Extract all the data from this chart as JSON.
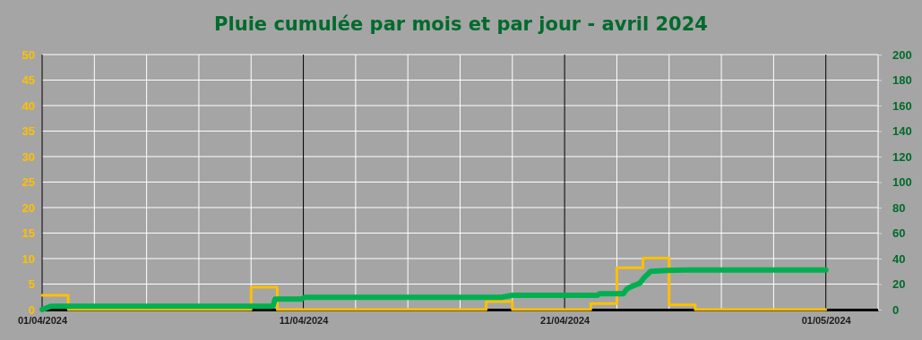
{
  "chart_data": {
    "type": "line",
    "title": "Pluie cumulée par mois et par jour - avril 2024",
    "xlim": [
      "2024-04-01",
      "2024-05-03"
    ],
    "xticks": [
      {
        "value": "2024-04-01",
        "label": "01/04/2024"
      },
      {
        "value": "2024-04-03",
        "label": null
      },
      {
        "value": "2024-04-05",
        "label": null
      },
      {
        "value": "2024-04-07",
        "label": null
      },
      {
        "value": "2024-04-09",
        "label": null
      },
      {
        "value": "2024-04-11",
        "label": "11/04/2024"
      },
      {
        "value": "2024-04-13",
        "label": null
      },
      {
        "value": "2024-04-15",
        "label": null
      },
      {
        "value": "2024-04-17",
        "label": null
      },
      {
        "value": "2024-04-19",
        "label": null
      },
      {
        "value": "2024-04-21",
        "label": "21/04/2024"
      },
      {
        "value": "2024-04-23",
        "label": null
      },
      {
        "value": "2024-04-25",
        "label": null
      },
      {
        "value": "2024-04-27",
        "label": null
      },
      {
        "value": "2024-04-29",
        "label": null
      },
      {
        "value": "2024-05-01",
        "label": "01/05/2024"
      },
      {
        "value": "2024-05-03",
        "label": null
      }
    ],
    "ylim": [
      0,
      50
    ],
    "yticks": [
      0,
      5,
      10,
      15,
      20,
      25,
      30,
      35,
      40,
      45,
      50
    ],
    "y2lim": [
      0,
      200
    ],
    "y2ticks": [
      0,
      20,
      40,
      60,
      80,
      100,
      120,
      140,
      160,
      180,
      200
    ],
    "grid": true,
    "marker": "none",
    "line_style": "solid",
    "series": [
      {
        "type": "step",
        "color": "#ffc000",
        "x": [
          "2024-04-01",
          "2024-04-02",
          "2024-04-03",
          "2024-04-04",
          "2024-04-05",
          "2024-04-06",
          "2024-04-07",
          "2024-04-08",
          "2024-04-09",
          "2024-04-10",
          "2024-04-11",
          "2024-04-12",
          "2024-04-13",
          "2024-04-14",
          "2024-04-15",
          "2024-04-16",
          "2024-04-17",
          "2024-04-18",
          "2024-04-19",
          "2024-04-20",
          "2024-04-21",
          "2024-04-22",
          "2024-04-23",
          "2024-04-24",
          "2024-04-25",
          "2024-04-26",
          "2024-04-27",
          "2024-04-28",
          "2024-04-29",
          "2024-04-30",
          "2024-05-01"
        ],
        "values": [
          2.8,
          0,
          0,
          0,
          0,
          0,
          0,
          0,
          4.4,
          0,
          0,
          0,
          0,
          0,
          0,
          0,
          0,
          1.6,
          0,
          0,
          0,
          1.2,
          8.2,
          10.1,
          0.9,
          0,
          0,
          0,
          0,
          0,
          0
        ]
      },
      {
        "axis": "y2",
        "color": "#00b050",
        "x": [
          "2024-04-01",
          "2024-04-01T08:00",
          "2024-04-09T20:00",
          "2024-04-09T22:00",
          "2024-04-10T22:00",
          "2024-04-11T01:00",
          "2024-04-18T14:00",
          "2024-04-19T00:00",
          "2024-04-22T06:00",
          "2024-04-22T08:00",
          "2024-04-23T06:00",
          "2024-04-23T09:00",
          "2024-04-23T13:00",
          "2024-04-23T21:00",
          "2024-04-24T01:00",
          "2024-04-24T07:00",
          "2024-04-24T22:00",
          "2024-04-25T14:00",
          "2024-05-01"
        ],
        "values": [
          0,
          2.6,
          2.6,
          8.2,
          8.2,
          9.6,
          9.6,
          11.2,
          11.2,
          12.4,
          12.4,
          16,
          18,
          20.6,
          25,
          30,
          30.7,
          31.1,
          31.1
        ]
      }
    ]
  }
}
